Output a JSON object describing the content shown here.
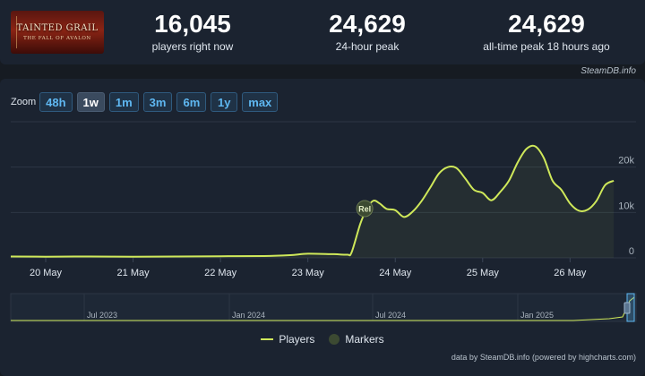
{
  "logo": {
    "line1": "TAINTED GRAIL",
    "line2": "THE FALL OF AVALON"
  },
  "stats": [
    {
      "value": "16,045",
      "label": "players right now"
    },
    {
      "value": "24,629",
      "label": "24-hour peak"
    },
    {
      "value": "24,629",
      "label": "all-time peak 18 hours ago"
    }
  ],
  "credit_top": "SteamDB.info",
  "zoom": {
    "label": "Zoom",
    "buttons": [
      "48h",
      "1w",
      "1m",
      "3m",
      "6m",
      "1y",
      "max"
    ],
    "active": "1w"
  },
  "legend": {
    "players": "Players",
    "markers": "Markers"
  },
  "credit_bottom": "data by SteamDB.info (powered by highcharts.com)",
  "colors": {
    "line": "#cfe85a",
    "marker": "#3c4a32",
    "accent": "#5fb8f2"
  },
  "chart_data": {
    "type": "line",
    "x_unit": "days",
    "x_ticks": [
      {
        "x": 20,
        "label": "20 May"
      },
      {
        "x": 21,
        "label": "21 May"
      },
      {
        "x": 22,
        "label": "22 May"
      },
      {
        "x": 23,
        "label": "23 May"
      },
      {
        "x": 24,
        "label": "24 May"
      },
      {
        "x": 25,
        "label": "25 May"
      },
      {
        "x": 26,
        "label": "26 May"
      }
    ],
    "y_ticks": [
      {
        "y": 0,
        "label": "0"
      },
      {
        "y": 10000,
        "label": "10k"
      },
      {
        "y": 20000,
        "label": "20k"
      }
    ],
    "xlim": [
      19.6,
      26.55
    ],
    "ylim": [
      0,
      30000
    ],
    "grid": true,
    "legend_position": "bottom-center",
    "series": [
      {
        "name": "Players",
        "x": [
          19.6,
          20.0,
          20.5,
          21.0,
          21.5,
          22.0,
          22.5,
          22.8,
          23.0,
          23.3,
          23.45,
          23.5,
          23.6,
          23.68,
          23.75,
          23.82,
          23.9,
          24.0,
          24.1,
          24.2,
          24.3,
          24.4,
          24.5,
          24.6,
          24.7,
          24.8,
          24.9,
          25.0,
          25.1,
          25.2,
          25.3,
          25.4,
          25.5,
          25.6,
          25.7,
          25.8,
          25.9,
          26.0,
          26.1,
          26.2,
          26.3,
          26.4,
          26.5
        ],
        "y": [
          300,
          250,
          300,
          250,
          300,
          350,
          400,
          600,
          900,
          800,
          700,
          1200,
          7500,
          11000,
          12600,
          12000,
          10800,
          10500,
          9000,
          10200,
          12500,
          15500,
          18600,
          20000,
          19800,
          17500,
          15000,
          14300,
          12700,
          14500,
          17000,
          21000,
          24000,
          24600,
          22000,
          17000,
          15000,
          12000,
          10400,
          10600,
          12500,
          16000,
          17000
        ]
      }
    ],
    "markers": [
      {
        "x": 23.65,
        "label": "Rel"
      }
    ],
    "navigator": {
      "x_ticks": [
        "Jul 2023",
        "Jan 2024",
        "Jul 2024",
        "Jan 2025"
      ]
    }
  }
}
